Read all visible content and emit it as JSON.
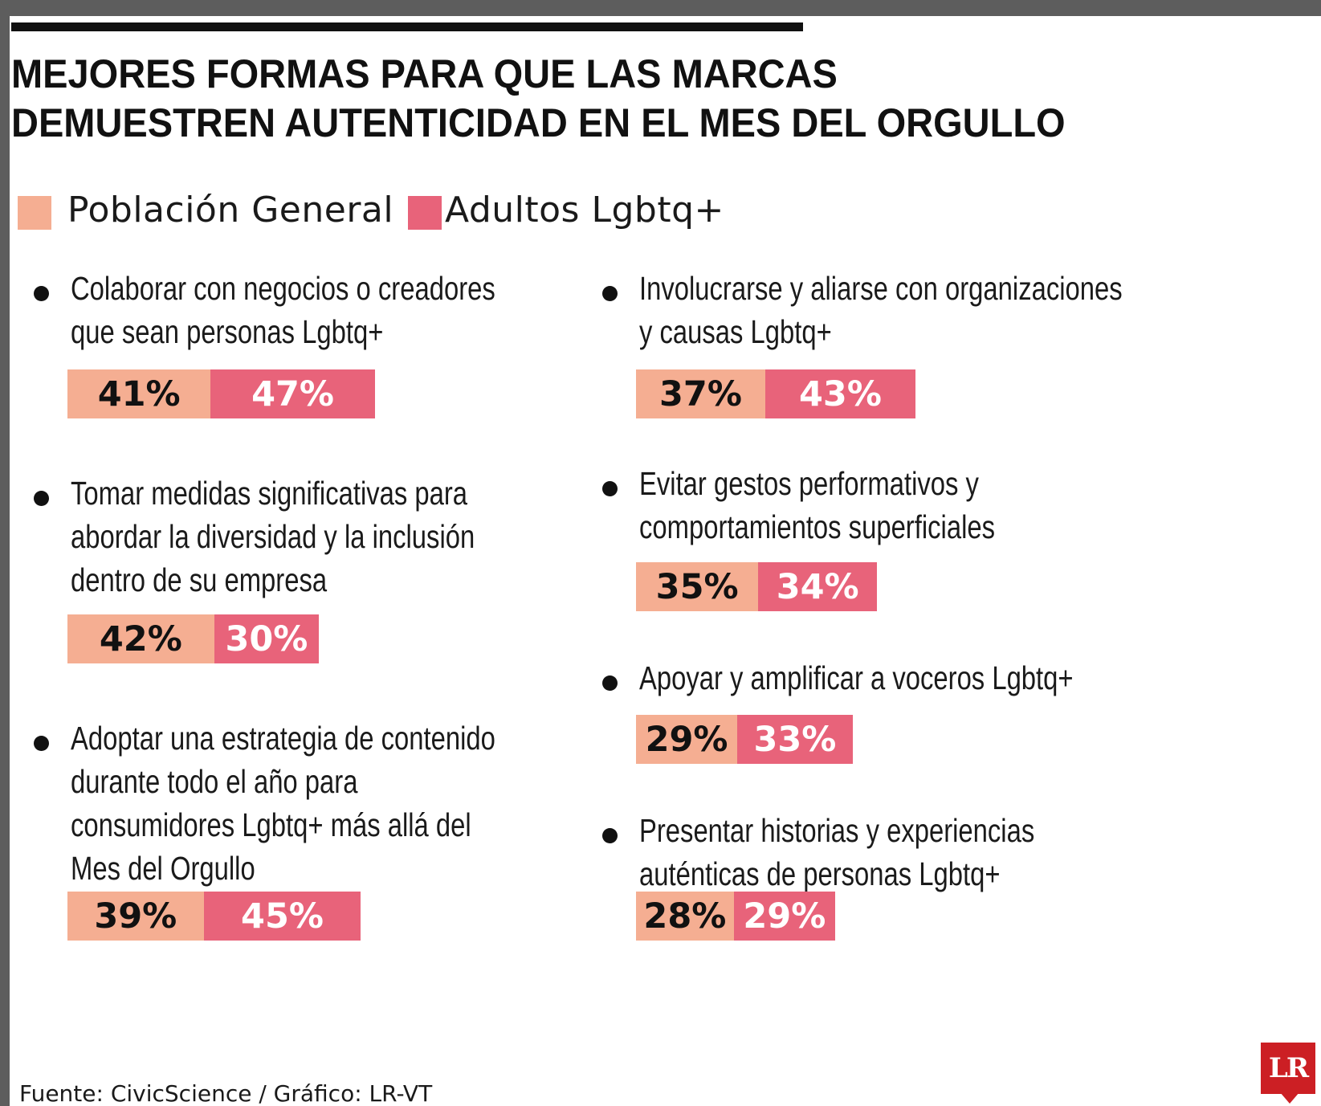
{
  "title": {
    "line1": "MEJORES FORMAS PARA QUE LAS MARCAS",
    "line2": "DEMUESTREN AUTENTICIDAD EN EL MES DEL ORGULLO"
  },
  "legend": [
    {
      "label": "Población General",
      "color": "#f5ae92"
    },
    {
      "label": "Adultos Lgbtq+",
      "color": "#e8637a"
    }
  ],
  "items": [
    {
      "lines": [
        "Colaborar con negocios o creadores",
        "que sean personas Lgbtq+"
      ],
      "general_label": "41%",
      "lgbtq_label": "47%"
    },
    {
      "lines": [
        "Tomar medidas significativas para",
        "abordar la diversidad y la inclusión",
        "dentro de su empresa"
      ],
      "general_label": "42%",
      "lgbtq_label": "30%"
    },
    {
      "lines": [
        "Adoptar una estrategia de contenido",
        "durante todo el año para",
        "consumidores Lgbtq+ más allá del",
        "Mes del Orgullo"
      ],
      "general_label": "39%",
      "lgbtq_label": "45%"
    },
    {
      "lines": [
        "Involucrarse y aliarse con organizaciones",
        "y causas Lgbtq+"
      ],
      "general_label": "37%",
      "lgbtq_label": "43%"
    },
    {
      "lines": [
        "Evitar gestos performativos y",
        "comportamientos superficiales"
      ],
      "general_label": "35%",
      "lgbtq_label": "34%"
    },
    {
      "lines": [
        "Apoyar y amplificar a voceros Lgbtq+"
      ],
      "general_label": "29%",
      "lgbtq_label": "33%"
    },
    {
      "lines": [
        "Presentar historias y experiencias",
        "auténticas de personas Lgbtq+"
      ],
      "general_label": "28%",
      "lgbtq_label": "29%"
    }
  ],
  "chart_data": {
    "type": "bar",
    "title": "MEJORES FORMAS PARA QUE LAS MARCAS DEMUESTREN AUTENTICIDAD EN EL MES DEL ORGULLO",
    "categories": [
      "Colaborar con negocios o creadores que sean personas Lgbtq+",
      "Tomar medidas significativas para abordar la diversidad y la inclusión dentro de su empresa",
      "Adoptar una estrategia de contenido durante todo el año para consumidores Lgbtq+ más allá del Mes del Orgullo",
      "Involucrarse y aliarse con organizaciones y causas Lgbtq+",
      "Evitar gestos performativos y comportamientos superficiales",
      "Apoyar y amplificar a voceros Lgbtq+",
      "Presentar historias y experiencias auténticas de personas Lgbtq+"
    ],
    "series": [
      {
        "name": "Población General",
        "values": [
          41,
          42,
          39,
          37,
          35,
          29,
          28
        ],
        "color": "#f5ae92"
      },
      {
        "name": "Adultos Lgbtq+",
        "values": [
          47,
          30,
          45,
          43,
          34,
          33,
          29
        ],
        "color": "#e8637a"
      }
    ],
    "stacked": true,
    "legend_position": "top-left",
    "grid": false
  },
  "footer": {
    "source": "Fuente: CivicScience  / Gráfico: LR-VT",
    "logo": "LR"
  }
}
